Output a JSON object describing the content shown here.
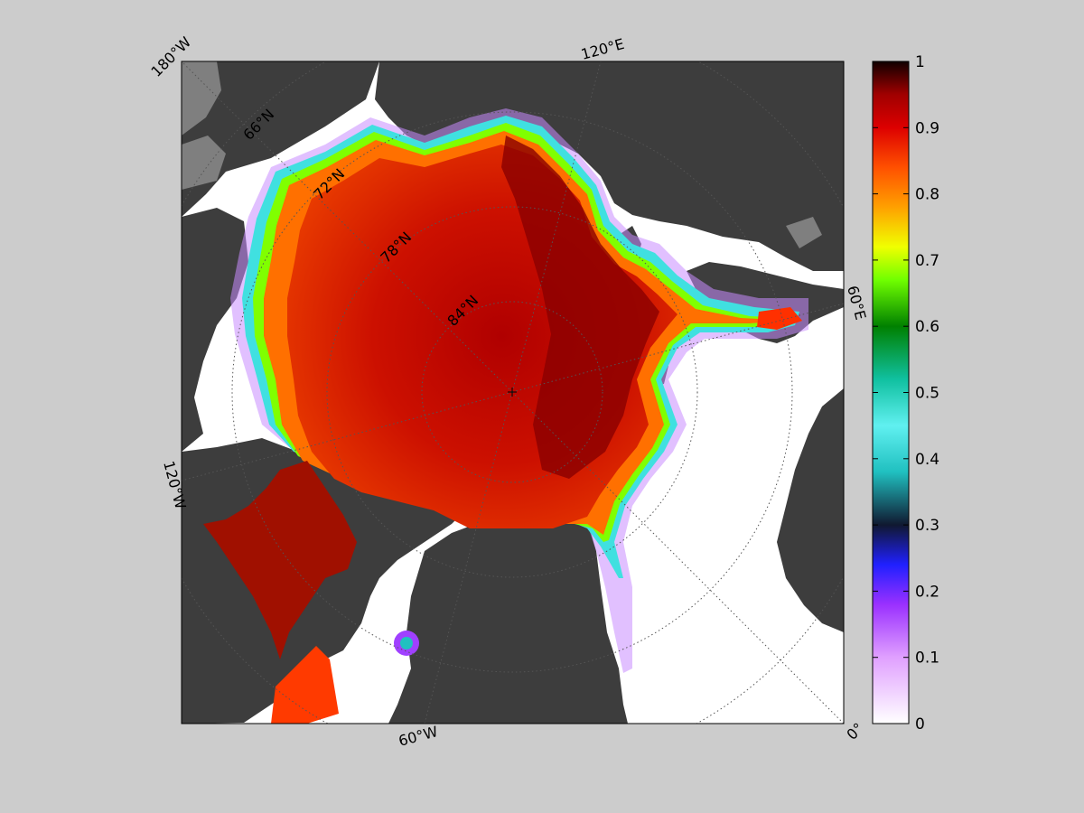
{
  "map": {
    "longitude_labels": [
      "180°W",
      "120°E",
      "60°E",
      "120°W",
      "60°W",
      "0°"
    ],
    "latitude_labels": [
      "66°N",
      "72°N",
      "78°N",
      "84°N"
    ],
    "colors": {
      "land": "#3d3d3d",
      "land_shadow": "#7f7f7f",
      "ocean_open": "#ffffff",
      "frame": "#000000"
    }
  },
  "colorbar": {
    "min": 0,
    "max": 1,
    "tick_labels": [
      "1",
      "0.9",
      "0.8",
      "0.7",
      "0.6",
      "0.5",
      "0.4",
      "0.3",
      "0.2",
      "0.1",
      "0"
    ],
    "tick_values": [
      1,
      0.9,
      0.8,
      0.7,
      0.6,
      0.5,
      0.4,
      0.3,
      0.2,
      0.1,
      0
    ],
    "stops": [
      {
        "value": 0.0,
        "color": "#ffffff"
      },
      {
        "value": 0.1,
        "color": "#e0a0ff"
      },
      {
        "value": 0.18,
        "color": "#9a30ff"
      },
      {
        "value": 0.24,
        "color": "#2020ff"
      },
      {
        "value": 0.3,
        "color": "#101830"
      },
      {
        "value": 0.38,
        "color": "#20c0c0"
      },
      {
        "value": 0.45,
        "color": "#60f0f0"
      },
      {
        "value": 0.52,
        "color": "#10c0a0"
      },
      {
        "value": 0.6,
        "color": "#008000"
      },
      {
        "value": 0.67,
        "color": "#70ff00"
      },
      {
        "value": 0.72,
        "color": "#f0ff00"
      },
      {
        "value": 0.78,
        "color": "#ffa000"
      },
      {
        "value": 0.84,
        "color": "#ff5000"
      },
      {
        "value": 0.9,
        "color": "#dd0000"
      },
      {
        "value": 0.95,
        "color": "#a00000"
      },
      {
        "value": 1.0,
        "color": "#100000"
      }
    ]
  }
}
